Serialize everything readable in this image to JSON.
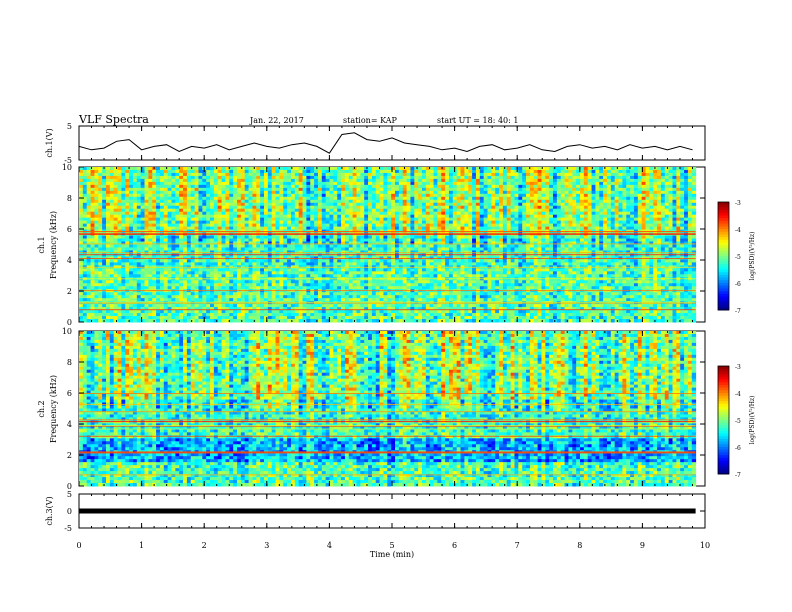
{
  "header": {
    "title": "VLF Spectra",
    "date": "Jan. 22, 2017",
    "station": "station= KAP",
    "start": "start UT = 18: 40: 1"
  },
  "chart_data": [
    {
      "type": "line",
      "name": "ch1-waveform",
      "ylabel": "ch.1(V)",
      "ylim": [
        -5,
        5
      ],
      "yticks": [
        "5",
        "-5"
      ],
      "x": [
        0,
        0.2,
        0.4,
        0.6,
        0.8,
        1.0,
        1.2,
        1.4,
        1.6,
        1.8,
        2.0,
        2.2,
        2.4,
        2.6,
        2.8,
        3.0,
        3.2,
        3.4,
        3.6,
        3.8,
        4.0,
        4.2,
        4.4,
        4.6,
        4.8,
        5.0,
        5.2,
        5.4,
        5.6,
        5.8,
        6.0,
        6.2,
        6.4,
        6.6,
        6.8,
        7.0,
        7.2,
        7.4,
        7.6,
        7.8,
        8.0,
        8.2,
        8.4,
        8.6,
        8.8,
        9.0,
        9.2,
        9.4,
        9.6,
        9.8
      ],
      "values": [
        -1,
        -2,
        -1.5,
        0.5,
        1,
        -2,
        -1,
        -0.5,
        -2.5,
        -1,
        -1.5,
        -0.5,
        -2,
        -1,
        0,
        -1,
        -1.5,
        -0.5,
        0,
        -1,
        -3,
        2.5,
        3,
        1,
        0.5,
        1.5,
        0,
        -0.5,
        -1,
        -2,
        -1.5,
        -2.5,
        -1,
        -0.5,
        -2,
        -1.5,
        -0.5,
        -2,
        -2.5,
        -1,
        -0.5,
        -1.5,
        -1,
        -2,
        -0.5,
        -1.5,
        -1,
        -2,
        -1,
        -2
      ]
    },
    {
      "type": "heatmap",
      "name": "ch1-spectrogram",
      "ylabel": "ch.1\nFrequency (kHz)",
      "xlim": [
        0,
        9.85
      ],
      "ylim": [
        0,
        10
      ],
      "yticks": [
        "0",
        "2",
        "4",
        "6",
        "8",
        "10"
      ],
      "colorbar": {
        "label": "log(PSD)(V²/Hz)",
        "range": [
          -7,
          -3
        ],
        "ticks": [
          "-3",
          "-4",
          "-5",
          "-6",
          "-7"
        ]
      }
    },
    {
      "type": "heatmap",
      "name": "ch2-spectrogram",
      "ylabel": "ch.2\nFrequency (kHz)",
      "xlim": [
        0,
        9.85
      ],
      "ylim": [
        0,
        10
      ],
      "yticks": [
        "0",
        "2",
        "4",
        "6",
        "8",
        "10"
      ],
      "colorbar": {
        "label": "log(PSD)(V²/Hz)",
        "range": [
          -7,
          -3
        ],
        "ticks": [
          "-3",
          "-4",
          "-5",
          "-6",
          "-7"
        ]
      }
    },
    {
      "type": "line",
      "name": "ch3-waveform",
      "ylabel": "ch.3(V)",
      "ylim": [
        -5,
        5
      ],
      "yticks": [
        "5",
        "0",
        "-5"
      ],
      "x": [
        0,
        9.85
      ],
      "values": [
        0,
        0
      ]
    }
  ],
  "xaxis": {
    "label": "Time (min)",
    "ticks": [
      "0",
      "1",
      "2",
      "3",
      "4",
      "5",
      "6",
      "7",
      "8",
      "9",
      "10"
    ],
    "range": [
      0,
      10
    ]
  }
}
